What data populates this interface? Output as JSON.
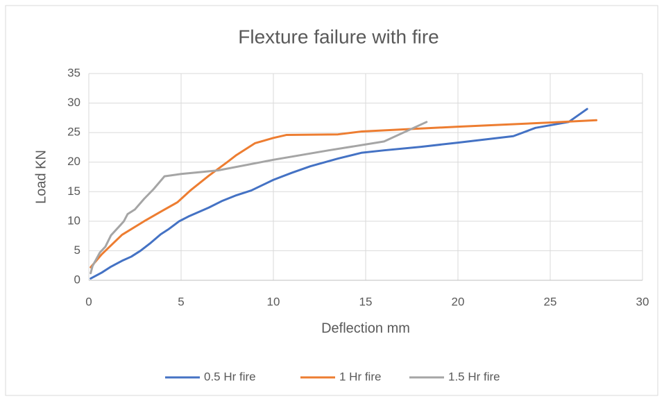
{
  "chart_data": {
    "type": "line",
    "title": "Flexture failure with fire",
    "xlabel": "Deflection mm",
    "ylabel": "Load KN",
    "xlim": [
      0,
      30
    ],
    "xticks": [
      0,
      5,
      10,
      15,
      20,
      25,
      30
    ],
    "ylim": [
      0,
      35
    ],
    "yticks": [
      0,
      5,
      10,
      15,
      20,
      25,
      30,
      35
    ],
    "grid": true,
    "legend": "bottom",
    "series": [
      {
        "name": "0.5 Hr fire",
        "color": "#4472c4",
        "x": [
          0.1,
          0.7,
          1.2,
          1.8,
          2.3,
          2.8,
          3.3,
          3.9,
          4.3,
          4.9,
          5.4,
          6.5,
          7.2,
          8,
          8.8,
          10,
          11,
          12,
          13.5,
          14.8,
          16,
          18,
          20,
          23,
          24.2,
          26,
          27
        ],
        "values": [
          0.3,
          1.3,
          2.3,
          3.3,
          4,
          5,
          6.2,
          7.8,
          8.6,
          10,
          10.8,
          12.3,
          13.4,
          14.4,
          15.2,
          17,
          18.2,
          19.3,
          20.6,
          21.6,
          22,
          22.6,
          23.3,
          24.4,
          25.8,
          26.8,
          29
        ]
      },
      {
        "name": "1 Hr fire",
        "color": "#ed7d31",
        "x": [
          0.1,
          0.7,
          1.8,
          3,
          4,
          4.8,
          5.5,
          6.5,
          7.5,
          8,
          9,
          10,
          10.7,
          13.5,
          14.8,
          20,
          25,
          27.5
        ],
        "values": [
          2.2,
          4.4,
          7.7,
          10,
          11.8,
          13.2,
          15.2,
          17.7,
          20,
          21.2,
          23.2,
          24.1,
          24.6,
          24.7,
          25.2,
          26,
          26.7,
          27.1
        ]
      },
      {
        "name": "1.5 Hr fire",
        "color": "#a5a5a5",
        "x": [
          0.1,
          0.2,
          0.6,
          0.9,
          1.2,
          1.7,
          1.9,
          2.1,
          2.5,
          3,
          3.5,
          4.1,
          5,
          7,
          10,
          13,
          16,
          18.3
        ],
        "values": [
          1.2,
          2.4,
          4.7,
          5.7,
          7.6,
          9.3,
          10,
          11.2,
          12,
          13.8,
          15.4,
          17.6,
          18,
          18.6,
          20.4,
          22,
          23.5,
          26.8
        ]
      }
    ]
  }
}
